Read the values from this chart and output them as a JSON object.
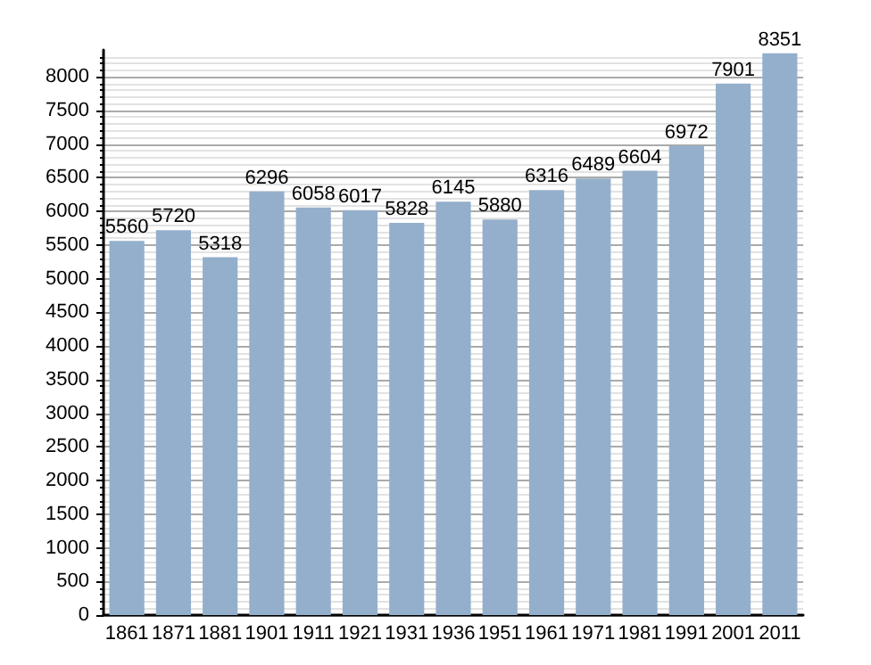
{
  "chart_data": {
    "type": "bar",
    "categories": [
      "1861",
      "1871",
      "1881",
      "1901",
      "1911",
      "1921",
      "1931",
      "1936",
      "1951",
      "1961",
      "1971",
      "1981",
      "1991",
      "2001",
      "2011"
    ],
    "values": [
      5560,
      5720,
      5318,
      6296,
      6058,
      6017,
      5828,
      6145,
      5880,
      6316,
      6489,
      6604,
      6972,
      7901,
      8351
    ],
    "color": "#94afcb",
    "data_labels": true,
    "grid": "y",
    "ylim": [
      0,
      8400
    ],
    "yticks": [
      0,
      500,
      1000,
      1500,
      2000,
      2500,
      3000,
      3500,
      4000,
      4500,
      5000,
      5500,
      6000,
      6500,
      7000,
      7500,
      8000
    ]
  }
}
